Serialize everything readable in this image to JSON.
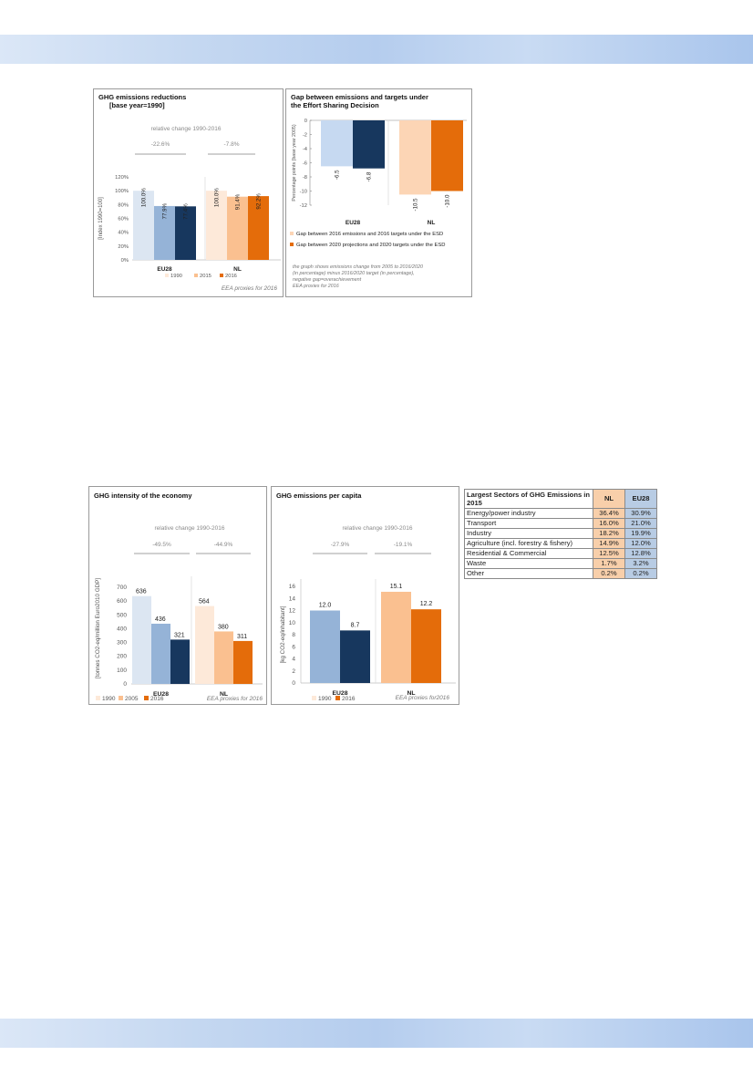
{
  "colors": {
    "eu1990": "#dce6f2",
    "eu2015": "#95b3d7",
    "eu2016": "#17375e",
    "nl1990": "#fde9d9",
    "nl2015": "#fac090",
    "nl2016": "#e46c0a",
    "gapEu2016": "#c6d9f1",
    "gapEu2020": "#17375e",
    "gapNl2016": "#fcd5b5",
    "gapNl2020": "#e46c0a",
    "legendGap2016": "#fcd5b5",
    "legendGap2020": "#e46c0a"
  },
  "chart_data": [
    {
      "id": "reductions",
      "type": "bar",
      "title": "GHG emissions reductions",
      "subtitle": "[base year=1990]",
      "ylabel": "[Index 1990=100]",
      "ylim": [
        0,
        120
      ],
      "yticks": [
        "0%",
        "20%",
        "40%",
        "60%",
        "80%",
        "100%",
        "120%"
      ],
      "categories": [
        "EU28",
        "NL"
      ],
      "legend": [
        "1990",
        "2015",
        "2016"
      ],
      "series": [
        {
          "name": "1990",
          "values": [
            100.0,
            100.0
          ],
          "labels": [
            "100.0%",
            "100.0%"
          ]
        },
        {
          "name": "2015",
          "values": [
            77.9,
            91.4
          ],
          "labels": [
            "77.9%",
            "91.4%"
          ]
        },
        {
          "name": "2016",
          "values": [
            77.4,
            92.2
          ],
          "labels": [
            "77.4%",
            "92.2%"
          ]
        }
      ],
      "relative_change_title": "relative change 1990-2016",
      "relative_change": [
        "-22.6%",
        "-7.8%"
      ],
      "source": "EEA proxies for 2016"
    },
    {
      "id": "gap",
      "type": "bar",
      "title": "Gap between emissions and targets under the Effort Sharing Decision",
      "title_lines": [
        "Gap between emissions and targets under",
        "the Effort Sharing Decision"
      ],
      "ylabel": "Percentage points (base year 2005)",
      "ylim": [
        -12,
        0
      ],
      "yticks": [
        "0",
        "-2",
        "-4",
        "-6",
        "-8",
        "-10",
        "-12"
      ],
      "categories": [
        "EU28",
        "NL"
      ],
      "series": [
        {
          "name": "Gap between 2016 emissions and 2016 targets under the ESD",
          "values": [
            -6.5,
            -10.5
          ],
          "labels": [
            "-6.5",
            "-10.5"
          ]
        },
        {
          "name": "Gap between 2020 projections and 2020 targets under the ESD",
          "values": [
            -6.8,
            -10.0
          ],
          "labels": [
            "-6.8",
            "-10.0"
          ]
        }
      ],
      "note": [
        "the graph shows emissions change from 2005 to 2016/2020",
        "(in percentage) minus  2016/2020 target (in percentage),",
        "negative gap=overachievement",
        "EEA proxies for 2016"
      ]
    },
    {
      "id": "intensity",
      "type": "bar",
      "title": "GHG intensity of the economy",
      "ylabel": "[tonnes CO2-eq/million Euro2010 GDP]",
      "ylim": [
        0,
        700
      ],
      "yticks": [
        "0",
        "100",
        "200",
        "300",
        "400",
        "500",
        "600",
        "700"
      ],
      "categories": [
        "EU28",
        "NL"
      ],
      "legend": [
        "1990",
        "2005",
        "2016"
      ],
      "series": [
        {
          "name": "1990",
          "values": [
            636,
            564
          ],
          "labels": [
            "636",
            "564"
          ]
        },
        {
          "name": "2005",
          "values": [
            436,
            380
          ],
          "labels": [
            "436",
            "380"
          ]
        },
        {
          "name": "2016",
          "values": [
            321,
            311
          ],
          "labels": [
            "321",
            "311"
          ]
        }
      ],
      "relative_change_title": "relative change 1990-2016",
      "relative_change": [
        "-49.5%",
        "-44.9%"
      ],
      "source": "EEA proxies for 2016"
    },
    {
      "id": "percapita",
      "type": "bar",
      "title": "GHG emissions per capita",
      "ylabel": "[kg CO2-eq/inhabitant]",
      "ylim": [
        0,
        16
      ],
      "yticks": [
        "0",
        "2",
        "4",
        "6",
        "8",
        "10",
        "12",
        "14",
        "16"
      ],
      "categories": [
        "EU28",
        "NL"
      ],
      "legend": [
        "1990",
        "2016"
      ],
      "series": [
        {
          "name": "1990",
          "values": [
            12.0,
            15.1
          ],
          "labels": [
            "12.0",
            "15.1"
          ]
        },
        {
          "name": "2016",
          "values": [
            8.7,
            12.2
          ],
          "labels": [
            "8.7",
            "12.2"
          ]
        }
      ],
      "relative_change_title": "relative change 1990-2016",
      "relative_change": [
        "-27.9%",
        "-19.1%"
      ],
      "source": "EEA proxies  for2016"
    },
    {
      "id": "sectors",
      "type": "table",
      "title_lines": [
        "Largest Sectors of GHG Emissions in",
        "2015"
      ],
      "columns": [
        "NL",
        "EU28"
      ],
      "rows": [
        {
          "sector": "Energy/power industry",
          "nl": "36.4%",
          "eu": "30.9%"
        },
        {
          "sector": "Transport",
          "nl": "16.0%",
          "eu": "21.0%"
        },
        {
          "sector": "Industry",
          "nl": "18.2%",
          "eu": "19.9%"
        },
        {
          "sector": "Agriculture (incl. forestry & fishery)",
          "nl": "14.9%",
          "eu": "12.0%"
        },
        {
          "sector": "Residential & Commercial",
          "nl": "12.5%",
          "eu": "12.8%"
        },
        {
          "sector": "Waste",
          "nl": "1.7%",
          "eu": "3.2%"
        },
        {
          "sector": "Other",
          "nl": "0.2%",
          "eu": "0.2%"
        }
      ]
    }
  ]
}
